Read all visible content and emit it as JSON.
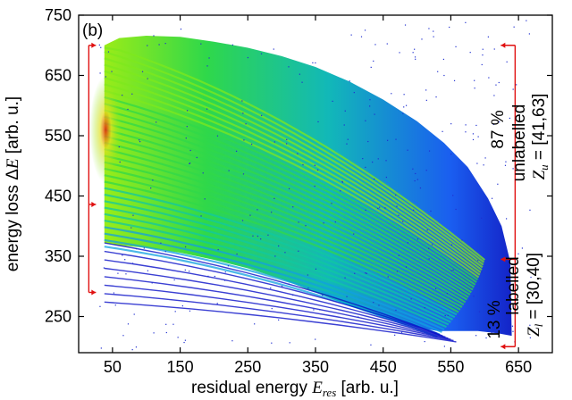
{
  "chart_data": {
    "type": "heatmap",
    "panel_label": "(b)",
    "xlabel_prefix": "residual energy ",
    "xlabel_var": "E",
    "xlabel_sub": "res",
    "xlabel_suffix": " [arb. u.]",
    "ylabel_prefix": "energy loss Δ",
    "ylabel_var": "E",
    "ylabel_suffix": " [arb. u.]",
    "xlim": [
      0,
      700
    ],
    "ylim": [
      190,
      750
    ],
    "x_ticks": [
      50,
      150,
      250,
      350,
      450,
      550,
      650
    ],
    "y_ticks": [
      250,
      350,
      450,
      550,
      650,
      750
    ],
    "grid": false,
    "colormap": [
      "#1020c8",
      "#1a5cf0",
      "#10a0e0",
      "#10c8a0",
      "#30d84a",
      "#7ee81e",
      "#e8e020",
      "#f0a010",
      "#e02810"
    ],
    "bands": {
      "count": 32,
      "left_edge_x": 38,
      "left_y_range": [
        366,
        700
      ],
      "right_y_range": [
        216,
        344
      ],
      "right_x_low": 530,
      "right_x_high": 640
    },
    "intensity_peak": {
      "x": 40,
      "y": 560
    },
    "left_bracket": {
      "x": 15,
      "y_top": 700,
      "y_mid": 436,
      "y_bottom": 290
    },
    "right_bracket": {
      "x": 645,
      "y_top": 700,
      "y_mid": 345,
      "y_bottom": 200
    },
    "upper_group": {
      "percent": "87 %",
      "status": "unlabelled",
      "z_var": "Z",
      "z_sub": "u",
      "z_range": " = [41,63]"
    },
    "lower_group": {
      "percent": "13 %",
      "status": "labelled",
      "z_var": "Z",
      "z_sub": "l",
      "z_range": " = [30,40]"
    }
  }
}
